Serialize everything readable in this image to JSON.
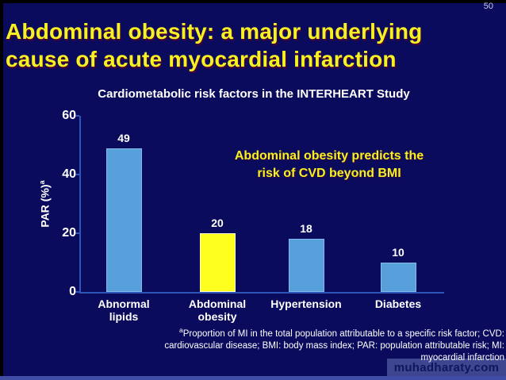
{
  "slide": {
    "page_number": "50",
    "title": "Abdominal obesity: a major underlying\ncause of acute myocardial infarction",
    "watermark": "muhadharaty.com"
  },
  "chart_data": {
    "type": "bar",
    "title": "Cardiometabolic risk factors in the INTERHEART Study",
    "categories": [
      "Abnormal\nlipids",
      "Abdominal\nobesity",
      "Hypertension",
      "Diabetes"
    ],
    "values": [
      49,
      20,
      18,
      10
    ],
    "bar_colors": [
      "#58a0dc",
      "#ffff1f",
      "#58a0dc",
      "#58a0dc"
    ],
    "bar_border_colors": [
      "#85b9e8",
      "#fdfdd0",
      "#85b9e8",
      "#85b9e8"
    ],
    "xlabel": "",
    "ylabel": "PAR (%)",
    "ylabel_superscript": "a",
    "yticks": [
      0,
      20,
      40,
      60
    ],
    "ylim": [
      0,
      60
    ],
    "grid": false,
    "legend": false,
    "annotation": "Abdominal obesity predicts the\nrisk of CVD beyond BMI"
  },
  "footnote": {
    "superscript": "a",
    "text": "Proportion of MI in the total population attributable to a specific risk factor; CVD: cardiovascular disease; BMI: body mass index; PAR: population attributable risk; MI: myocardial infarction"
  },
  "colors": {
    "background": "#0b0b5e",
    "title_yellow": "#f5f223",
    "text_white": "#ffffff",
    "bar_blue": "#58a0dc",
    "bar_highlight_yellow": "#ffff1f",
    "axis_blue": "#2e55b8",
    "watermark_background": "#3d468f",
    "watermark_text": "#10165a",
    "bottom_strip": "#404da6"
  }
}
